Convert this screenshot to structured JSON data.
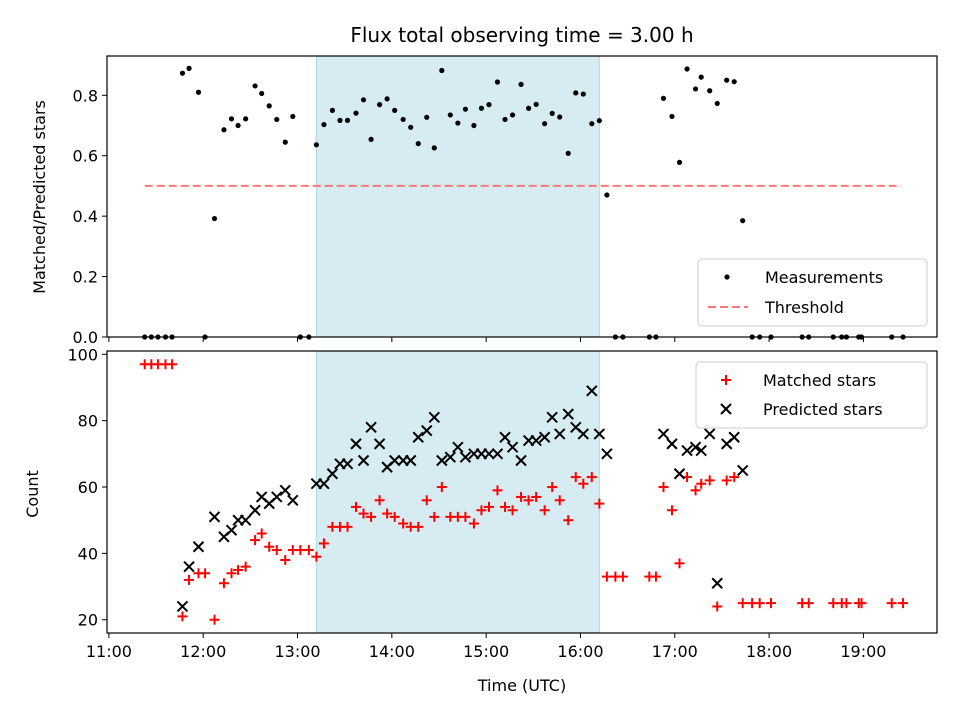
{
  "chart_data": [
    {
      "type": "scatter",
      "title": "Flux total observing time = 3.00 h",
      "ylabel": "Matched/Predicted stars",
      "xlabel": "",
      "xlim": [
        10.98,
        19.78
      ],
      "ylim": [
        0,
        0.93
      ],
      "x_ticks": [
        "11:00",
        "12:00",
        "13:00",
        "14:00",
        "15:00",
        "16:00",
        "17:00",
        "18:00",
        "19:00"
      ],
      "y_ticks": [
        "0.0",
        "0.2",
        "0.4",
        "0.6",
        "0.8"
      ],
      "shaded_interval": [
        13.2,
        16.2
      ],
      "legend_position": "lower-right",
      "threshold": {
        "name": "Threshold",
        "value": 0.5,
        "x_start": 11.38,
        "x_end": 19.4,
        "color": "#ff7777"
      },
      "series": [
        {
          "name": "Measurements",
          "color": "#000000",
          "points": [
            [
              11.38,
              0.0
            ],
            [
              11.45,
              0.0
            ],
            [
              11.52,
              0.0
            ],
            [
              11.6,
              0.0
            ],
            [
              11.67,
              0.0
            ],
            [
              11.78,
              0.873
            ],
            [
              11.85,
              0.889
            ],
            [
              11.95,
              0.81
            ],
            [
              12.02,
              0.0
            ],
            [
              12.12,
              0.392
            ],
            [
              12.22,
              0.686
            ],
            [
              12.3,
              0.722
            ],
            [
              12.37,
              0.7
            ],
            [
              12.45,
              0.722
            ],
            [
              12.55,
              0.831
            ],
            [
              12.62,
              0.806
            ],
            [
              12.7,
              0.765
            ],
            [
              12.78,
              0.72
            ],
            [
              12.87,
              0.645
            ],
            [
              12.95,
              0.73
            ],
            [
              13.03,
              0.0
            ],
            [
              13.12,
              0.0
            ],
            [
              13.2,
              0.636
            ],
            [
              13.28,
              0.703
            ],
            [
              13.37,
              0.75
            ],
            [
              13.45,
              0.717
            ],
            [
              13.53,
              0.717
            ],
            [
              13.62,
              0.741
            ],
            [
              13.7,
              0.785
            ],
            [
              13.78,
              0.654
            ],
            [
              13.87,
              0.769
            ],
            [
              13.95,
              0.788
            ],
            [
              14.03,
              0.75
            ],
            [
              14.12,
              0.72
            ],
            [
              14.2,
              0.694
            ],
            [
              14.28,
              0.64
            ],
            [
              14.37,
              0.727
            ],
            [
              14.45,
              0.626
            ],
            [
              14.53,
              0.882
            ],
            [
              14.62,
              0.735
            ],
            [
              14.7,
              0.708
            ],
            [
              14.78,
              0.754
            ],
            [
              14.87,
              0.7
            ],
            [
              14.95,
              0.757
            ],
            [
              15.03,
              0.769
            ],
            [
              15.12,
              0.844
            ],
            [
              15.2,
              0.72
            ],
            [
              15.28,
              0.735
            ],
            [
              15.37,
              0.836
            ],
            [
              15.45,
              0.757
            ],
            [
              15.53,
              0.77
            ],
            [
              15.62,
              0.706
            ],
            [
              15.7,
              0.74
            ],
            [
              15.78,
              0.728
            ],
            [
              15.87,
              0.608
            ],
            [
              15.95,
              0.808
            ],
            [
              16.03,
              0.804
            ],
            [
              16.12,
              0.706
            ],
            [
              16.2,
              0.716
            ],
            [
              16.28,
              0.47
            ],
            [
              16.37,
              0.0
            ],
            [
              16.45,
              0.0
            ],
            [
              16.73,
              0.0
            ],
            [
              16.8,
              0.0
            ],
            [
              16.88,
              0.79
            ],
            [
              16.97,
              0.73
            ],
            [
              17.05,
              0.578
            ],
            [
              17.13,
              0.887
            ],
            [
              17.22,
              0.821
            ],
            [
              17.28,
              0.86
            ],
            [
              17.37,
              0.815
            ],
            [
              17.45,
              0.773
            ],
            [
              17.55,
              0.85
            ],
            [
              17.63,
              0.845
            ],
            [
              17.72,
              0.385
            ],
            [
              17.82,
              0.0
            ],
            [
              17.9,
              0.0
            ],
            [
              18.02,
              0.0
            ],
            [
              18.35,
              0.0
            ],
            [
              18.42,
              0.0
            ],
            [
              18.68,
              0.0
            ],
            [
              18.77,
              0.0
            ],
            [
              18.82,
              0.0
            ],
            [
              18.95,
              0.0
            ],
            [
              18.98,
              0.0
            ],
            [
              19.3,
              0.0
            ],
            [
              19.42,
              0.0
            ]
          ]
        }
      ]
    },
    {
      "type": "scatter",
      "title": "",
      "ylabel": "Count",
      "xlabel": "Time (UTC)",
      "xlim": [
        10.98,
        19.78
      ],
      "ylim": [
        16,
        101
      ],
      "x_ticks": [
        "11:00",
        "12:00",
        "13:00",
        "14:00",
        "15:00",
        "16:00",
        "17:00",
        "18:00",
        "19:00"
      ],
      "y_ticks": [
        "20",
        "40",
        "60",
        "80",
        "100"
      ],
      "shaded_interval": [
        13.2,
        16.2
      ],
      "legend_position": "upper-right",
      "series": [
        {
          "name": "Matched stars",
          "color": "#ff0000",
          "marker": "plus",
          "points": [
            [
              11.38,
              97
            ],
            [
              11.45,
              97
            ],
            [
              11.52,
              97
            ],
            [
              11.6,
              97
            ],
            [
              11.67,
              97
            ],
            [
              11.78,
              21
            ],
            [
              11.85,
              32
            ],
            [
              11.95,
              34
            ],
            [
              12.02,
              34
            ],
            [
              12.12,
              20
            ],
            [
              12.22,
              31
            ],
            [
              12.3,
              34
            ],
            [
              12.37,
              35
            ],
            [
              12.45,
              36
            ],
            [
              12.55,
              44
            ],
            [
              12.62,
              46
            ],
            [
              12.7,
              42
            ],
            [
              12.78,
              41
            ],
            [
              12.87,
              38
            ],
            [
              12.95,
              41
            ],
            [
              13.03,
              41
            ],
            [
              13.12,
              41
            ],
            [
              13.2,
              39
            ],
            [
              13.28,
              43
            ],
            [
              13.37,
              48
            ],
            [
              13.45,
              48
            ],
            [
              13.53,
              48
            ],
            [
              13.62,
              54
            ],
            [
              13.7,
              52
            ],
            [
              13.78,
              51
            ],
            [
              13.87,
              56
            ],
            [
              13.95,
              52
            ],
            [
              14.03,
              51
            ],
            [
              14.12,
              49
            ],
            [
              14.2,
              48
            ],
            [
              14.28,
              48
            ],
            [
              14.37,
              56
            ],
            [
              14.45,
              51
            ],
            [
              14.53,
              60
            ],
            [
              14.62,
              51
            ],
            [
              14.7,
              51
            ],
            [
              14.78,
              51
            ],
            [
              14.87,
              49
            ],
            [
              14.95,
              53
            ],
            [
              15.03,
              54
            ],
            [
              15.12,
              59
            ],
            [
              15.2,
              54
            ],
            [
              15.28,
              53
            ],
            [
              15.37,
              57
            ],
            [
              15.45,
              56
            ],
            [
              15.53,
              57
            ],
            [
              15.62,
              53
            ],
            [
              15.7,
              60
            ],
            [
              15.78,
              56
            ],
            [
              15.87,
              50
            ],
            [
              15.95,
              63
            ],
            [
              16.03,
              61
            ],
            [
              16.12,
              63
            ],
            [
              16.2,
              55
            ],
            [
              16.28,
              33
            ],
            [
              16.37,
              33
            ],
            [
              16.45,
              33
            ],
            [
              16.73,
              33
            ],
            [
              16.8,
              33
            ],
            [
              16.88,
              60
            ],
            [
              16.97,
              53
            ],
            [
              17.05,
              37
            ],
            [
              17.13,
              63
            ],
            [
              17.22,
              59
            ],
            [
              17.28,
              61
            ],
            [
              17.37,
              62
            ],
            [
              17.45,
              24
            ],
            [
              17.55,
              62
            ],
            [
              17.63,
              63
            ],
            [
              17.72,
              25
            ],
            [
              17.82,
              25
            ],
            [
              17.9,
              25
            ],
            [
              18.02,
              25
            ],
            [
              18.35,
              25
            ],
            [
              18.42,
              25
            ],
            [
              18.68,
              25
            ],
            [
              18.77,
              25
            ],
            [
              18.82,
              25
            ],
            [
              18.95,
              25
            ],
            [
              18.98,
              25
            ],
            [
              19.3,
              25
            ],
            [
              19.42,
              25
            ]
          ]
        },
        {
          "name": "Predicted stars",
          "color": "#000000",
          "marker": "x",
          "points": [
            [
              11.78,
              24
            ],
            [
              11.85,
              36
            ],
            [
              11.95,
              42
            ],
            [
              12.12,
              51
            ],
            [
              12.22,
              45
            ],
            [
              12.3,
              47
            ],
            [
              12.37,
              50
            ],
            [
              12.45,
              50
            ],
            [
              12.55,
              53
            ],
            [
              12.62,
              57
            ],
            [
              12.7,
              55
            ],
            [
              12.78,
              57
            ],
            [
              12.87,
              59
            ],
            [
              12.95,
              56
            ],
            [
              13.2,
              61
            ],
            [
              13.28,
              61
            ],
            [
              13.37,
              64
            ],
            [
              13.45,
              67
            ],
            [
              13.53,
              67
            ],
            [
              13.62,
              73
            ],
            [
              13.7,
              68
            ],
            [
              13.78,
              78
            ],
            [
              13.87,
              73
            ],
            [
              13.95,
              66
            ],
            [
              14.03,
              68
            ],
            [
              14.12,
              68
            ],
            [
              14.2,
              68
            ],
            [
              14.28,
              75
            ],
            [
              14.37,
              77
            ],
            [
              14.45,
              81
            ],
            [
              14.53,
              68
            ],
            [
              14.62,
              69
            ],
            [
              14.7,
              72
            ],
            [
              14.78,
              69
            ],
            [
              14.87,
              70
            ],
            [
              14.95,
              70
            ],
            [
              15.03,
              70
            ],
            [
              15.12,
              70
            ],
            [
              15.2,
              75
            ],
            [
              15.28,
              72
            ],
            [
              15.37,
              68
            ],
            [
              15.45,
              74
            ],
            [
              15.53,
              74
            ],
            [
              15.62,
              75
            ],
            [
              15.7,
              81
            ],
            [
              15.78,
              76
            ],
            [
              15.87,
              82
            ],
            [
              15.95,
              78
            ],
            [
              16.03,
              76
            ],
            [
              16.12,
              89
            ],
            [
              16.2,
              76
            ],
            [
              16.28,
              70
            ],
            [
              16.88,
              76
            ],
            [
              16.97,
              73
            ],
            [
              17.05,
              64
            ],
            [
              17.13,
              71
            ],
            [
              17.22,
              72
            ],
            [
              17.28,
              71
            ],
            [
              17.37,
              76
            ],
            [
              17.45,
              31
            ],
            [
              17.55,
              73
            ],
            [
              17.63,
              75
            ],
            [
              17.72,
              65
            ]
          ]
        }
      ]
    }
  ]
}
